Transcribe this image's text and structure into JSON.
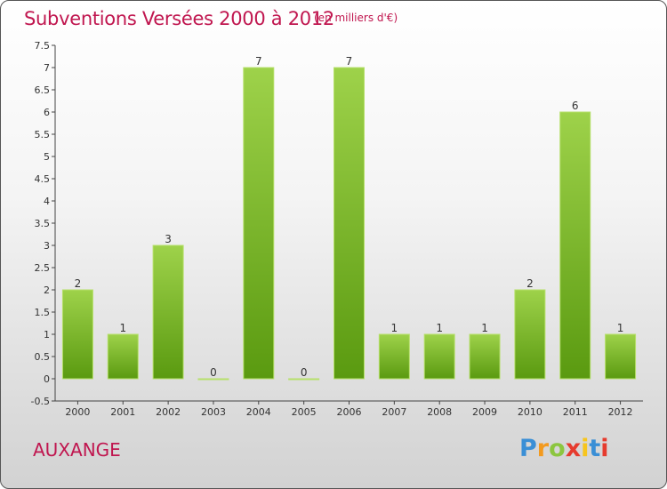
{
  "title": "Subventions Versées 2000 à 2012",
  "subtitle": "(en milliers d'€)",
  "commune": "AUXANGE",
  "logo": {
    "letters": [
      "P",
      "r",
      "o",
      "x",
      "i",
      "t",
      "i"
    ]
  },
  "colors": {
    "title": "#c0164f",
    "bar_top": "#9ed24a",
    "bar_bottom": "#5a9a10"
  },
  "chart_data": {
    "type": "bar",
    "categories": [
      "2000",
      "2001",
      "2002",
      "2003",
      "2004",
      "2005",
      "2006",
      "2007",
      "2008",
      "2009",
      "2010",
      "2011",
      "2012"
    ],
    "values": [
      2,
      1,
      3,
      0,
      7,
      0,
      7,
      1,
      1,
      1,
      2,
      6,
      1
    ],
    "data_labels": [
      "2",
      "1",
      "3",
      "0",
      "7",
      "0",
      "7",
      "1",
      "1",
      "1",
      "2",
      "6",
      "1"
    ],
    "yticks": [
      "-0.5",
      "0",
      "0.5",
      "1",
      "1.5",
      "2",
      "2.5",
      "3",
      "3.5",
      "4",
      "4.5",
      "5",
      "5.5",
      "6",
      "6.5",
      "7",
      "7.5"
    ],
    "ylim": [
      -0.5,
      7.5
    ],
    "grid": false,
    "legend": "none"
  }
}
